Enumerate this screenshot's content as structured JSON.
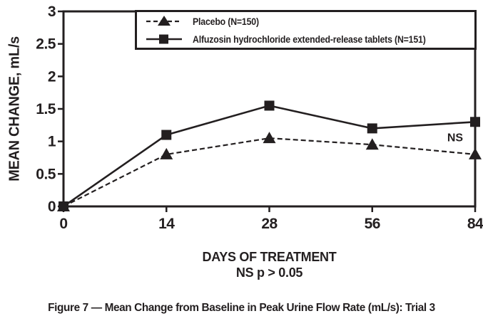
{
  "colors": {
    "ink": "#231f20",
    "background": "#ffffff"
  },
  "figure": {
    "caption": "Figure 7 — Mean Change from Baseline in Peak Urine Flow Rate (mL/s): Trial 3"
  },
  "chart_data": {
    "type": "line",
    "title": "",
    "xlabel": "DAYS OF TREATMENT",
    "ylabel": "MEAN CHANGE, mL/s",
    "note": "NS p > 0.05",
    "categories": [
      "0",
      "14",
      "28",
      "56",
      "84"
    ],
    "x_values": [
      0,
      14,
      28,
      56,
      84
    ],
    "x_spacing": "equal",
    "ylim": [
      0,
      3
    ],
    "yticks": [
      "0",
      "0.5",
      "1",
      "1.5",
      "2",
      "2.5",
      "3"
    ],
    "ytick_values": [
      0,
      0.5,
      1,
      1.5,
      2,
      2.5,
      3
    ],
    "grid": false,
    "legend_position": "top-inside",
    "series": [
      {
        "name": "Placebo (N=150)",
        "marker": "triangle",
        "line": "dashed",
        "color": "#231f20",
        "values": [
          0,
          0.8,
          1.05,
          0.95,
          0.8
        ]
      },
      {
        "name": "Alfuzosin hydrochloride extended-release tablets (N=151)",
        "marker": "square",
        "line": "solid",
        "color": "#231f20",
        "values": [
          0,
          1.1,
          1.55,
          1.2,
          1.3
        ]
      }
    ],
    "annotations": [
      {
        "text": "NS",
        "series": 1,
        "index": 4,
        "offset": [
          -28,
          27
        ]
      }
    ]
  }
}
